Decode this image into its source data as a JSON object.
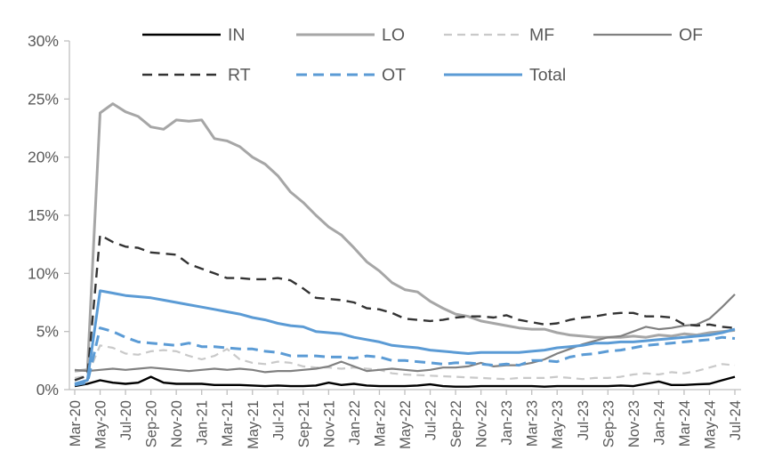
{
  "chart_data": {
    "type": "line",
    "title": "",
    "xlabel": "",
    "ylabel": "",
    "grid": false,
    "legend_position": "top",
    "legend_rows": [
      [
        "IN",
        "LO",
        "MF",
        "OF"
      ],
      [
        "RT",
        "OT",
        "Total"
      ]
    ],
    "ylim": [
      0,
      30
    ],
    "yticks": [
      0,
      5,
      10,
      15,
      20,
      25,
      30
    ],
    "ytick_labels": [
      "0%",
      "5%",
      "10%",
      "15%",
      "20%",
      "25%",
      "30%"
    ],
    "xtick_every": 2,
    "axis_color": "#bfbfbf",
    "label_color": "#595959",
    "x": [
      "Mar-20",
      "Apr-20",
      "May-20",
      "Jun-20",
      "Jul-20",
      "Aug-20",
      "Sep-20",
      "Oct-20",
      "Nov-20",
      "Dec-20",
      "Jan-21",
      "Feb-21",
      "Mar-21",
      "Apr-21",
      "May-21",
      "Jun-21",
      "Jul-21",
      "Aug-21",
      "Sep-21",
      "Oct-21",
      "Nov-21",
      "Dec-21",
      "Jan-22",
      "Feb-22",
      "Mar-22",
      "Apr-22",
      "May-22",
      "Jun-22",
      "Jul-22",
      "Aug-22",
      "Sep-22",
      "Oct-22",
      "Nov-22",
      "Dec-22",
      "Jan-23",
      "Feb-23",
      "Mar-23",
      "Apr-23",
      "May-23",
      "Jun-23",
      "Jul-23",
      "Aug-23",
      "Sep-23",
      "Oct-23",
      "Nov-23",
      "Dec-23",
      "Jan-24",
      "Feb-24",
      "Mar-24",
      "Apr-24",
      "May-24",
      "Jun-24",
      "Jul-24"
    ],
    "series": [
      {
        "name": "IN",
        "color": "#000000",
        "dash": "",
        "width": 2.4,
        "values": [
          0.3,
          0.5,
          0.8,
          0.6,
          0.5,
          0.6,
          1.1,
          0.6,
          0.5,
          0.5,
          0.5,
          0.4,
          0.4,
          0.4,
          0.35,
          0.3,
          0.35,
          0.3,
          0.3,
          0.35,
          0.6,
          0.4,
          0.5,
          0.35,
          0.3,
          0.3,
          0.3,
          0.35,
          0.45,
          0.3,
          0.25,
          0.25,
          0.3,
          0.3,
          0.3,
          0.3,
          0.3,
          0.25,
          0.3,
          0.3,
          0.3,
          0.3,
          0.3,
          0.35,
          0.3,
          0.5,
          0.7,
          0.4,
          0.4,
          0.45,
          0.5,
          0.8,
          1.1
        ]
      },
      {
        "name": "LO",
        "color": "#a6a6a6",
        "dash": "",
        "width": 3,
        "values": [
          1.6,
          1.7,
          23.8,
          24.6,
          23.9,
          23.5,
          22.6,
          22.4,
          23.2,
          23.1,
          23.2,
          21.6,
          21.4,
          20.9,
          20.0,
          19.4,
          18.4,
          17.0,
          16.1,
          15.0,
          14.0,
          13.3,
          12.2,
          11.0,
          10.2,
          9.2,
          8.6,
          8.4,
          7.6,
          7.0,
          6.5,
          6.3,
          5.9,
          5.7,
          5.5,
          5.3,
          5.2,
          5.2,
          4.9,
          4.7,
          4.6,
          4.5,
          4.5,
          4.5,
          4.6,
          4.5,
          4.7,
          4.6,
          4.8,
          4.7,
          4.9,
          5.0,
          5.1
        ]
      },
      {
        "name": "MF",
        "color": "#c9c9c9",
        "dash": "9 6",
        "width": 2.2,
        "values": [
          1.0,
          1.2,
          3.8,
          3.6,
          3.1,
          3.0,
          3.3,
          3.4,
          3.3,
          2.9,
          2.6,
          2.9,
          3.5,
          2.6,
          2.3,
          2.2,
          2.4,
          2.3,
          2.0,
          1.9,
          1.9,
          1.8,
          1.9,
          1.8,
          1.7,
          1.4,
          1.3,
          1.25,
          1.2,
          1.15,
          1.1,
          1.05,
          1.0,
          0.95,
          0.9,
          1.0,
          1.0,
          1.0,
          1.1,
          1.0,
          0.9,
          1.0,
          1.0,
          1.1,
          1.3,
          1.4,
          1.3,
          1.5,
          1.4,
          1.6,
          1.9,
          2.2,
          2.1
        ]
      },
      {
        "name": "OF",
        "color": "#808080",
        "dash": "",
        "width": 2.2,
        "values": [
          1.7,
          1.6,
          1.7,
          1.8,
          1.7,
          1.8,
          1.9,
          1.8,
          1.7,
          1.6,
          1.7,
          1.8,
          1.7,
          1.8,
          1.7,
          1.5,
          1.6,
          1.6,
          1.7,
          1.8,
          2.0,
          2.4,
          2.0,
          1.6,
          1.7,
          1.8,
          1.7,
          1.6,
          1.7,
          1.9,
          1.9,
          2.0,
          2.3,
          2.0,
          2.1,
          2.1,
          2.3,
          2.6,
          3.1,
          3.5,
          3.9,
          4.2,
          4.5,
          4.6,
          5.0,
          5.4,
          5.2,
          5.3,
          5.5,
          5.6,
          6.1,
          7.1,
          8.2
        ]
      },
      {
        "name": "RT",
        "color": "#333333",
        "dash": "11 7",
        "width": 2.4,
        "values": [
          0.8,
          1.2,
          13.3,
          12.7,
          12.3,
          12.2,
          11.8,
          11.7,
          11.6,
          10.8,
          10.4,
          10.0,
          9.6,
          9.6,
          9.5,
          9.5,
          9.6,
          9.4,
          8.7,
          7.9,
          7.8,
          7.7,
          7.5,
          7.0,
          6.9,
          6.6,
          6.1,
          6.0,
          5.9,
          6.0,
          6.2,
          6.3,
          6.3,
          6.2,
          6.4,
          6.0,
          5.8,
          5.6,
          5.7,
          6.0,
          6.2,
          6.3,
          6.5,
          6.6,
          6.6,
          6.3,
          6.3,
          6.2,
          5.6,
          5.5,
          5.6,
          5.4,
          5.3
        ]
      },
      {
        "name": "OT",
        "color": "#5b9bd5",
        "dash": "12 7",
        "width": 3,
        "values": [
          0.4,
          0.6,
          5.3,
          5.0,
          4.5,
          4.1,
          4.0,
          3.9,
          3.8,
          4.0,
          3.7,
          3.7,
          3.6,
          3.5,
          3.5,
          3.3,
          3.2,
          2.9,
          2.9,
          2.9,
          2.8,
          2.8,
          2.7,
          2.9,
          2.8,
          2.5,
          2.5,
          2.4,
          2.3,
          2.2,
          2.3,
          2.3,
          2.2,
          2.1,
          2.2,
          2.1,
          2.5,
          2.5,
          2.4,
          2.8,
          3.0,
          3.1,
          3.3,
          3.4,
          3.6,
          3.8,
          3.9,
          4.0,
          4.1,
          4.2,
          4.3,
          4.5,
          4.4
        ]
      },
      {
        "name": "Total",
        "color": "#5b9bd5",
        "dash": "",
        "width": 3,
        "values": [
          0.5,
          0.8,
          8.5,
          8.3,
          8.1,
          8.0,
          7.9,
          7.7,
          7.5,
          7.3,
          7.1,
          6.9,
          6.7,
          6.5,
          6.2,
          6.0,
          5.7,
          5.5,
          5.4,
          5.0,
          4.9,
          4.8,
          4.5,
          4.3,
          4.1,
          3.8,
          3.7,
          3.6,
          3.4,
          3.3,
          3.2,
          3.1,
          3.2,
          3.2,
          3.2,
          3.2,
          3.3,
          3.4,
          3.6,
          3.7,
          3.8,
          4.0,
          4.0,
          4.1,
          4.1,
          4.2,
          4.3,
          4.4,
          4.5,
          4.6,
          4.7,
          4.9,
          5.2
        ]
      }
    ]
  }
}
